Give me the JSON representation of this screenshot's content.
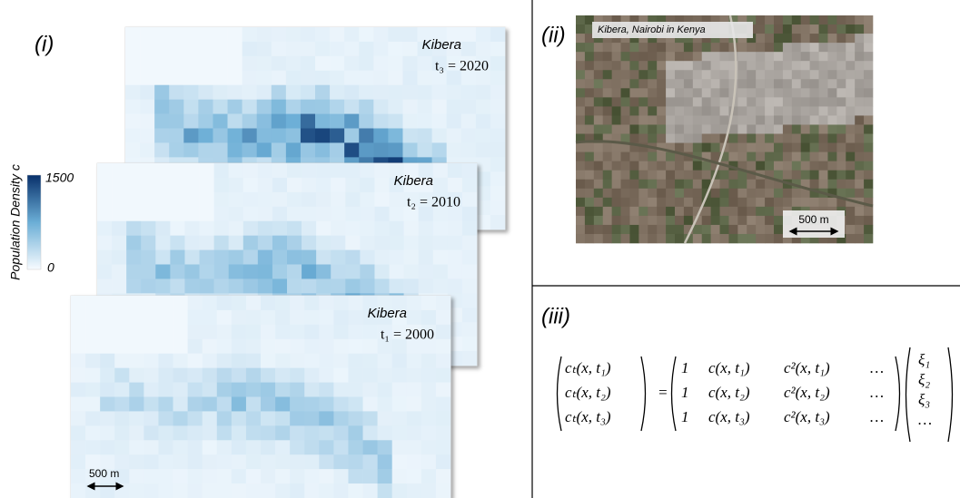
{
  "panel_i": {
    "label": "(i)",
    "maps": [
      {
        "place": "Kibera",
        "time": "t₁ = 2000"
      },
      {
        "place": "Kibera",
        "time": "t₂ = 2010"
      },
      {
        "place": "Kibera",
        "time": "t₃ = 2020"
      }
    ],
    "colorbar": {
      "title": "Population Density c",
      "ticks": [
        1500,
        0
      ]
    },
    "scale": "500 m"
  },
  "panel_ii": {
    "label": "(ii)",
    "caption": "Kibera, Nairobi in Kenya",
    "scale": "500 m"
  },
  "panel_iii": {
    "label": "(iii)",
    "lhs": [
      "cₜ(x, t₁)",
      "cₜ(x, t₂)",
      "cₜ(x, t₃)"
    ],
    "equals": "=",
    "matrix": [
      [
        "1",
        "c(x, t₁)",
        "c²(x, t₁)",
        "…"
      ],
      [
        "1",
        "c(x, t₂)",
        "c²(x, t₂)",
        "…"
      ],
      [
        "1",
        "c(x, t₃)",
        "c²(x, t₃)",
        "…"
      ]
    ],
    "xi": [
      "ξ₁",
      "ξ₂",
      "ξ₃",
      "…"
    ]
  }
}
